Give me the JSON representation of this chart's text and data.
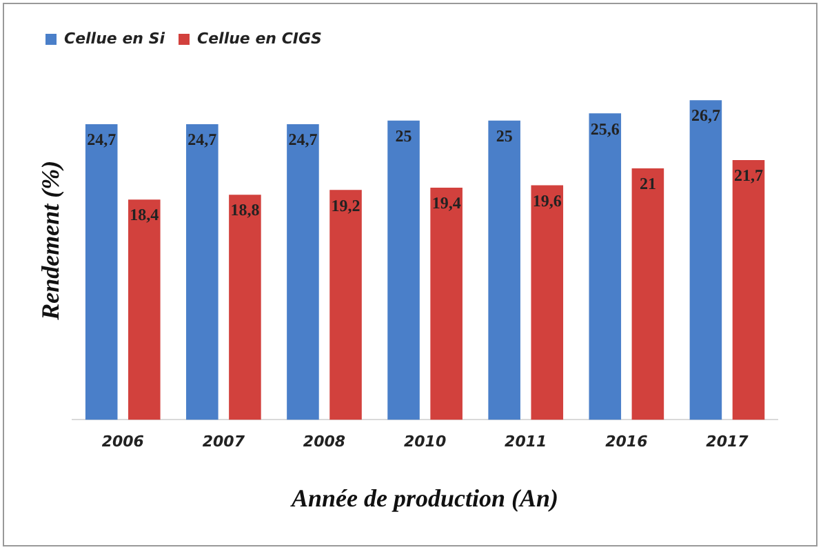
{
  "chart_data": {
    "type": "bar",
    "xlabel": "Année de production (An)",
    "ylabel": "Rendement (%)",
    "categories": [
      "2006",
      "2007",
      "2008",
      "2010",
      "2011",
      "2016",
      "2017"
    ],
    "series": [
      {
        "name": "Cellue en Si",
        "color": "#4a7fc9",
        "values": [
          24.7,
          24.7,
          24.7,
          25,
          25,
          25.6,
          26.7
        ],
        "value_labels": [
          "24,7",
          "24,7",
          "24,7",
          "25",
          "25",
          "25,6",
          "26,7"
        ]
      },
      {
        "name": "Cellue en CIGS",
        "color": "#d2413d",
        "values": [
          18.4,
          18.8,
          19.2,
          19.4,
          19.6,
          21,
          21.7
        ],
        "value_labels": [
          "18,4",
          "18,8",
          "19,2",
          "19,4",
          "19,6",
          "21",
          "21,7"
        ]
      }
    ],
    "tick_labels": "x",
    "legend": "top left",
    "grid": false
  }
}
